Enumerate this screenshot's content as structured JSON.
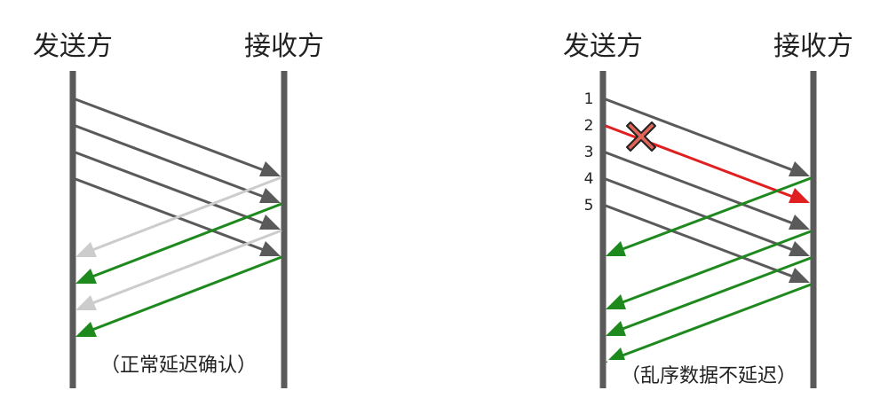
{
  "colors": {
    "data": "#5a5a5a",
    "ack": "#1e8a1e",
    "lost": "#e02020",
    "faded_ack": "#cccccc",
    "cross_fill": "#e06458"
  },
  "left": {
    "sender_label": "发送方",
    "receiver_label": "接收方",
    "caption": "（正常延迟确认）"
  },
  "right": {
    "sender_label": "发送方",
    "receiver_label": "接收方",
    "caption": "（乱序数据不延迟）",
    "packet_numbers": [
      "1",
      "2",
      "3",
      "4",
      "5"
    ]
  }
}
